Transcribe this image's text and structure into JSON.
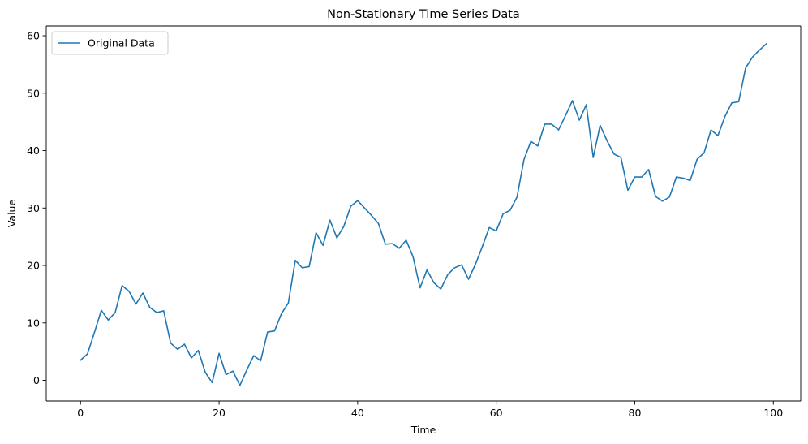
{
  "chart_data": {
    "type": "line",
    "title": "Non-Stationary Time Series Data",
    "xlabel": "Time",
    "ylabel": "Value",
    "xlim": [
      -4.95,
      103.95
    ],
    "ylim": [
      -3.6,
      61.7
    ],
    "xticks": [
      0,
      20,
      40,
      60,
      80,
      100
    ],
    "yticks": [
      0,
      10,
      20,
      30,
      40,
      50,
      60
    ],
    "grid": false,
    "legend_position": "upper-left",
    "series": [
      {
        "name": "Original Data",
        "color": "#1f77b4",
        "x": [
          0,
          1,
          2,
          3,
          4,
          5,
          6,
          7,
          8,
          9,
          10,
          11,
          12,
          13,
          14,
          15,
          16,
          17,
          18,
          19,
          20,
          21,
          22,
          23,
          24,
          25,
          26,
          27,
          28,
          29,
          30,
          31,
          32,
          33,
          34,
          35,
          36,
          37,
          38,
          39,
          40,
          41,
          42,
          43,
          44,
          45,
          46,
          47,
          48,
          49,
          50,
          51,
          52,
          53,
          54,
          55,
          56,
          57,
          58,
          59,
          60,
          61,
          62,
          63,
          64,
          65,
          66,
          67,
          68,
          69,
          70,
          71,
          72,
          73,
          74,
          75,
          76,
          77,
          78,
          79,
          80,
          81,
          82,
          83,
          84,
          85,
          86,
          87,
          88,
          89,
          90,
          91,
          92,
          93,
          94,
          95,
          96,
          97,
          98,
          99
        ],
        "values": [
          3.5,
          4.6,
          8.3,
          12.2,
          10.5,
          11.8,
          16.5,
          15.5,
          13.3,
          15.2,
          12.7,
          11.8,
          12.1,
          6.5,
          5.4,
          6.3,
          3.9,
          5.2,
          1.4,
          -0.4,
          4.7,
          1.0,
          1.6,
          -0.9,
          1.8,
          4.3,
          3.4,
          8.4,
          8.6,
          11.6,
          13.5,
          20.9,
          19.6,
          19.8,
          25.7,
          23.5,
          27.9,
          24.8,
          26.8,
          30.3,
          31.3,
          30.0,
          28.7,
          27.3,
          23.7,
          23.8,
          23.0,
          24.4,
          21.5,
          16.1,
          19.2,
          17.0,
          15.9,
          18.4,
          19.6,
          20.1,
          17.6,
          20.2,
          23.3,
          26.6,
          26.0,
          29.0,
          29.6,
          31.9,
          38.4,
          41.6,
          40.8,
          44.6,
          44.6,
          43.6,
          46.1,
          48.7,
          45.3,
          48.0,
          38.8,
          44.4,
          41.7,
          39.4,
          38.8,
          33.1,
          35.4,
          35.4,
          36.7,
          32.0,
          31.2,
          31.9,
          35.4,
          35.2,
          34.8,
          38.5,
          39.6,
          43.6,
          42.6,
          45.9,
          48.3,
          48.5,
          54.4,
          56.3,
          57.5,
          58.6
        ]
      }
    ]
  }
}
